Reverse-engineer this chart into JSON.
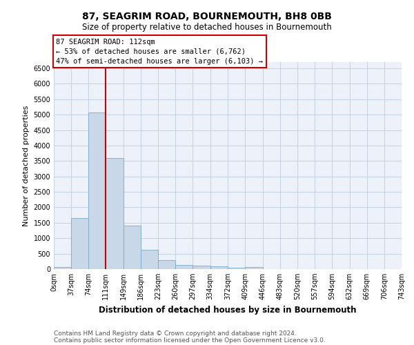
{
  "title": "87, SEAGRIM ROAD, BOURNEMOUTH, BH8 0BB",
  "subtitle": "Size of property relative to detached houses in Bournemouth",
  "xlabel": "Distribution of detached houses by size in Bournemouth",
  "ylabel": "Number of detached properties",
  "footer_line1": "Contains HM Land Registry data © Crown copyright and database right 2024.",
  "footer_line2": "Contains public sector information licensed under the Open Government Licence v3.0.",
  "bar_edges": [
    0,
    37,
    74,
    111,
    149,
    186,
    223,
    260,
    297,
    334,
    372,
    409,
    446,
    483,
    520,
    557,
    594,
    632,
    669,
    706,
    743
  ],
  "bar_heights": [
    65,
    1650,
    5080,
    3590,
    1410,
    620,
    295,
    145,
    110,
    80,
    55,
    65,
    0,
    0,
    0,
    0,
    0,
    0,
    0,
    0
  ],
  "bar_color": "#c8d8e8",
  "bar_edgecolor": "#7aaac8",
  "red_line_x": 111,
  "ylim": [
    0,
    6700
  ],
  "yticks": [
    0,
    500,
    1000,
    1500,
    2000,
    2500,
    3000,
    3500,
    4000,
    4500,
    5000,
    5500,
    6000,
    6500
  ],
  "annotation_line1": "87 SEAGRIM ROAD: 112sqm",
  "annotation_line2": "← 53% of detached houses are smaller (6,762)",
  "annotation_line3": "47% of semi-detached houses are larger (6,103) →",
  "annotation_box_color": "#ffffff",
  "annotation_box_edgecolor": "#cc0000",
  "grid_color": "#c8d4e4",
  "background_color": "#edf1fa",
  "title_fontsize": 10,
  "subtitle_fontsize": 8.5,
  "xlabel_fontsize": 8.5,
  "ylabel_fontsize": 8,
  "tick_label_fontsize": 7,
  "annotation_fontsize": 7.5,
  "footer_fontsize": 6.5
}
